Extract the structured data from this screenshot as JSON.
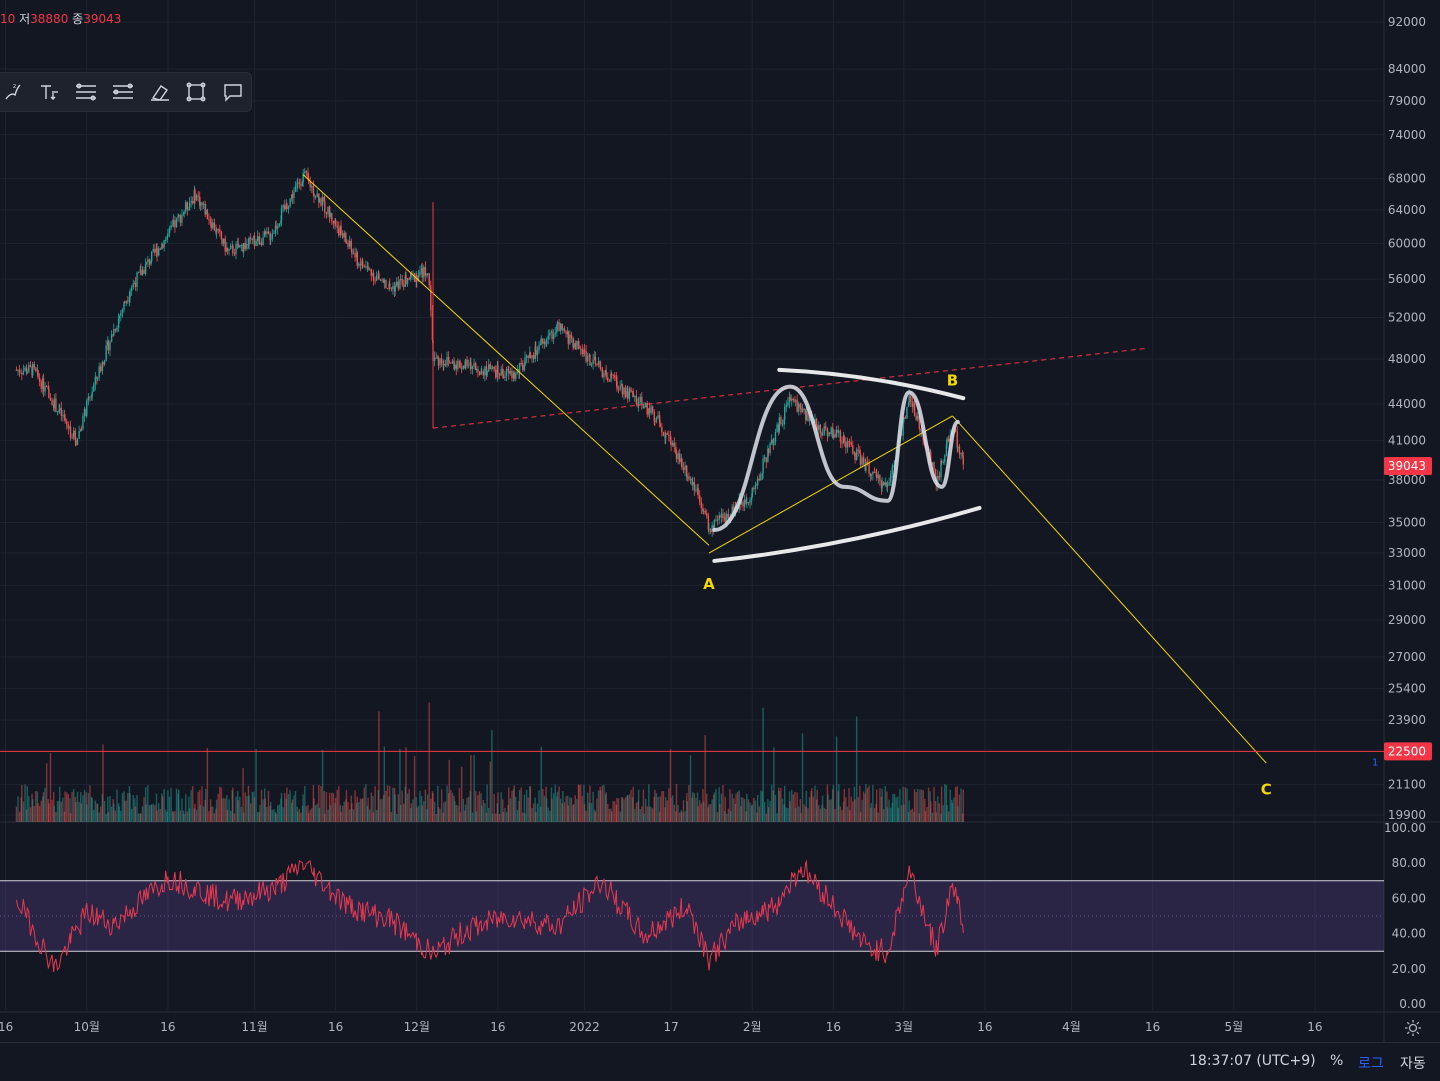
{
  "header": {
    "price_open_partial": "10",
    "low_label": "저",
    "low_value": "38880",
    "close_label": "종",
    "close_value": "39043"
  },
  "toolbar": {
    "tools": [
      {
        "icon": "brush-tool-icon"
      },
      {
        "icon": "text-tool-icon"
      },
      {
        "icon": "fib-retracement-icon"
      },
      {
        "icon": "parallel-channel-icon"
      },
      {
        "icon": "eraser-icon"
      },
      {
        "icon": "rectangle-icon"
      },
      {
        "icon": "comment-icon"
      }
    ]
  },
  "price_axis": {
    "ticks": [
      "92000",
      "84000",
      "79000",
      "74000",
      "68000",
      "64000",
      "60000",
      "56000",
      "52000",
      "48000",
      "44000",
      "41000",
      "38000",
      "35000",
      "33000",
      "31000",
      "29000",
      "27000",
      "25400",
      "23900",
      "22500",
      "21100",
      "19900"
    ],
    "current_price": "39043",
    "current_price_color": "#f23645",
    "horizontal_line_price": "22500",
    "horizontal_line_color": "#f23645",
    "alert_count": "1"
  },
  "rsi_axis": {
    "ticks": [
      "100.00",
      "80.00",
      "60.00",
      "40.00",
      "20.00",
      "0.00"
    ],
    "upper_band": 70,
    "lower_band": 30
  },
  "time_axis": {
    "ticks": [
      "16",
      "10월",
      "16",
      "11월",
      "16",
      "12월",
      "16",
      "2022",
      "17",
      "2월",
      "16",
      "3월",
      "16",
      "4월",
      "16",
      "5월",
      "16"
    ]
  },
  "annotations": {
    "wave_a": "A",
    "wave_b": "B",
    "wave_c": "C",
    "label_color": "#f5d800"
  },
  "footer": {
    "time": "18:37:07 (UTC+9)",
    "percent": "%",
    "log": "로그",
    "auto": "자동"
  },
  "chart_data": {
    "type": "candlestick",
    "instrument_currency": "USD",
    "scale": "log",
    "ylim": [
      19900,
      92000
    ],
    "grid": true,
    "series": [
      {
        "name": "",
        "kind": "price_path",
        "x": [
          "2021-09-21",
          "2021-09-29",
          "2021-10-09",
          "2021-10-16",
          "2021-10-21",
          "2021-10-27",
          "2021-11-04",
          "2021-11-10",
          "2021-11-20",
          "2021-11-26",
          "2021-12-03",
          "2021-12-04",
          "2021-12-14",
          "2021-12-19",
          "2021-12-27",
          "2022-01-05",
          "2022-01-14",
          "2022-01-22",
          "2022-01-24",
          "2022-02-01",
          "2022-02-08",
          "2022-02-13",
          "2022-02-17",
          "2022-02-24",
          "2022-02-26",
          "2022-03-02",
          "2022-03-07",
          "2022-03-10",
          "2022-03-12"
        ],
        "values": [
          47000,
          41000,
          55000,
          61000,
          66000,
          59000,
          61000,
          68500,
          58000,
          55000,
          57000,
          48000,
          47000,
          46500,
          51000,
          46500,
          43000,
          37000,
          34500,
          37000,
          44500,
          42000,
          41500,
          38000,
          37500,
          44500,
          38000,
          42000,
          39043
        ]
      }
    ],
    "volume": {
      "note": "histogram of daily volume in green/red below price"
    },
    "rsi": {
      "ylim": [
        0,
        100
      ],
      "bands": [
        30,
        70
      ],
      "x": [
        "2021-09-18",
        "2021-09-25",
        "2021-10-01",
        "2021-10-06",
        "2021-10-16",
        "2021-10-27",
        "2021-11-05",
        "2021-11-10",
        "2021-11-18",
        "2021-11-26",
        "2021-12-04",
        "2021-12-10",
        "2021-12-18",
        "2021-12-27",
        "2022-01-04",
        "2022-01-12",
        "2022-01-20",
        "2022-01-24",
        "2022-01-30",
        "2022-02-05",
        "2022-02-10",
        "2022-02-15",
        "2022-02-22",
        "2022-02-26",
        "2022-03-02",
        "2022-03-07",
        "2022-03-10",
        "2022-03-12"
      ],
      "values": [
        60,
        20,
        52,
        45,
        72,
        58,
        66,
        80,
        56,
        48,
        28,
        42,
        50,
        44,
        70,
        38,
        56,
        26,
        48,
        55,
        78,
        60,
        32,
        30,
        76,
        30,
        70,
        44
      ]
    },
    "drawings": [
      {
        "kind": "trend_line",
        "color": "#f5d800",
        "from": [
          "2021-11-10",
          68500
        ],
        "to": [
          "2022-01-24",
          33500
        ]
      },
      {
        "kind": "trend_line",
        "color": "#f5d800",
        "from": [
          "2022-01-24",
          33000
        ],
        "to": [
          "2022-03-10",
          43000
        ]
      },
      {
        "kind": "trend_line",
        "color": "#f5d800",
        "from": [
          "2022-03-10",
          43000
        ],
        "to": [
          "2022-05-07",
          22000
        ]
      },
      {
        "kind": "dashed_line",
        "color": "#f23645",
        "from": [
          "2021-12-04",
          42000
        ],
        "to": [
          "2022-04-15",
          49000
        ]
      },
      {
        "kind": "curve",
        "color": "#ffffff",
        "label": "channel_upper",
        "from": [
          "2022-02-06",
          47000
        ],
        "to": [
          "2022-03-12",
          44500
        ]
      },
      {
        "kind": "curve",
        "color": "#ffffff",
        "label": "channel_lower",
        "from": [
          "2022-01-25",
          32500
        ],
        "to": [
          "2022-03-15",
          36000
        ]
      }
    ]
  }
}
